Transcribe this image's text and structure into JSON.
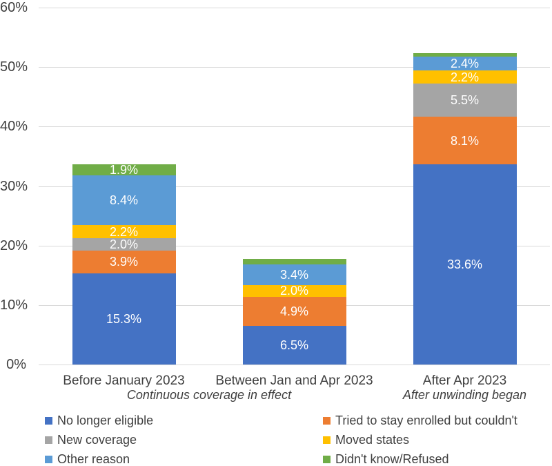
{
  "chart_data": {
    "type": "bar",
    "stacked": true,
    "title": "",
    "xlabel": "",
    "ylabel": "",
    "ylim": [
      0,
      60
    ],
    "ytick_step": 10,
    "ytick_labels": [
      "0%",
      "10%",
      "20%",
      "30%",
      "40%",
      "50%",
      "60%"
    ],
    "grid": true,
    "legend_position": "bottom",
    "legend_columns": 2,
    "categories": [
      "Before January 2023",
      "Between Jan and Apr 2023",
      "After Apr 2023"
    ],
    "category_subtitles": [
      {
        "text": "Continuous coverage in effect",
        "span": [
          0,
          1
        ]
      },
      {
        "text": "After unwinding began",
        "span": [
          2,
          2
        ]
      }
    ],
    "series": [
      {
        "name": "No longer eligible",
        "color": "#4472C4",
        "values": [
          15.3,
          6.5,
          33.6
        ],
        "labels": [
          "15.3%",
          "6.5%",
          "33.6%"
        ]
      },
      {
        "name": "Tried to stay enrolled but couldn't",
        "color": "#ED7D31",
        "values": [
          3.9,
          4.9,
          8.1
        ],
        "labels": [
          "3.9%",
          "4.9%",
          "8.1%"
        ]
      },
      {
        "name": "New coverage",
        "color": "#A5A5A5",
        "values": [
          2.0,
          0,
          5.5
        ],
        "labels": [
          "2.0%",
          "",
          "5.5%"
        ]
      },
      {
        "name": "Moved states",
        "color": "#FFC000",
        "values": [
          2.2,
          2.0,
          2.2
        ],
        "labels": [
          "2.2%",
          "2.0%",
          "2.2%"
        ]
      },
      {
        "name": "Other reason",
        "color": "#5B9BD5",
        "values": [
          8.4,
          3.4,
          2.4
        ],
        "labels": [
          "8.4%",
          "3.4%",
          "2.4%"
        ]
      },
      {
        "name": "Didn't know/Refused",
        "color": "#70AD47",
        "values": [
          1.9,
          1.0,
          0.5
        ],
        "labels": [
          "1.9%",
          "",
          ""
        ]
      }
    ],
    "colors": {
      "gridline": "#D9D9D9",
      "axis_text": "#404040",
      "data_label_text": "#FFFFFF",
      "background": "#FFFFFF"
    }
  }
}
